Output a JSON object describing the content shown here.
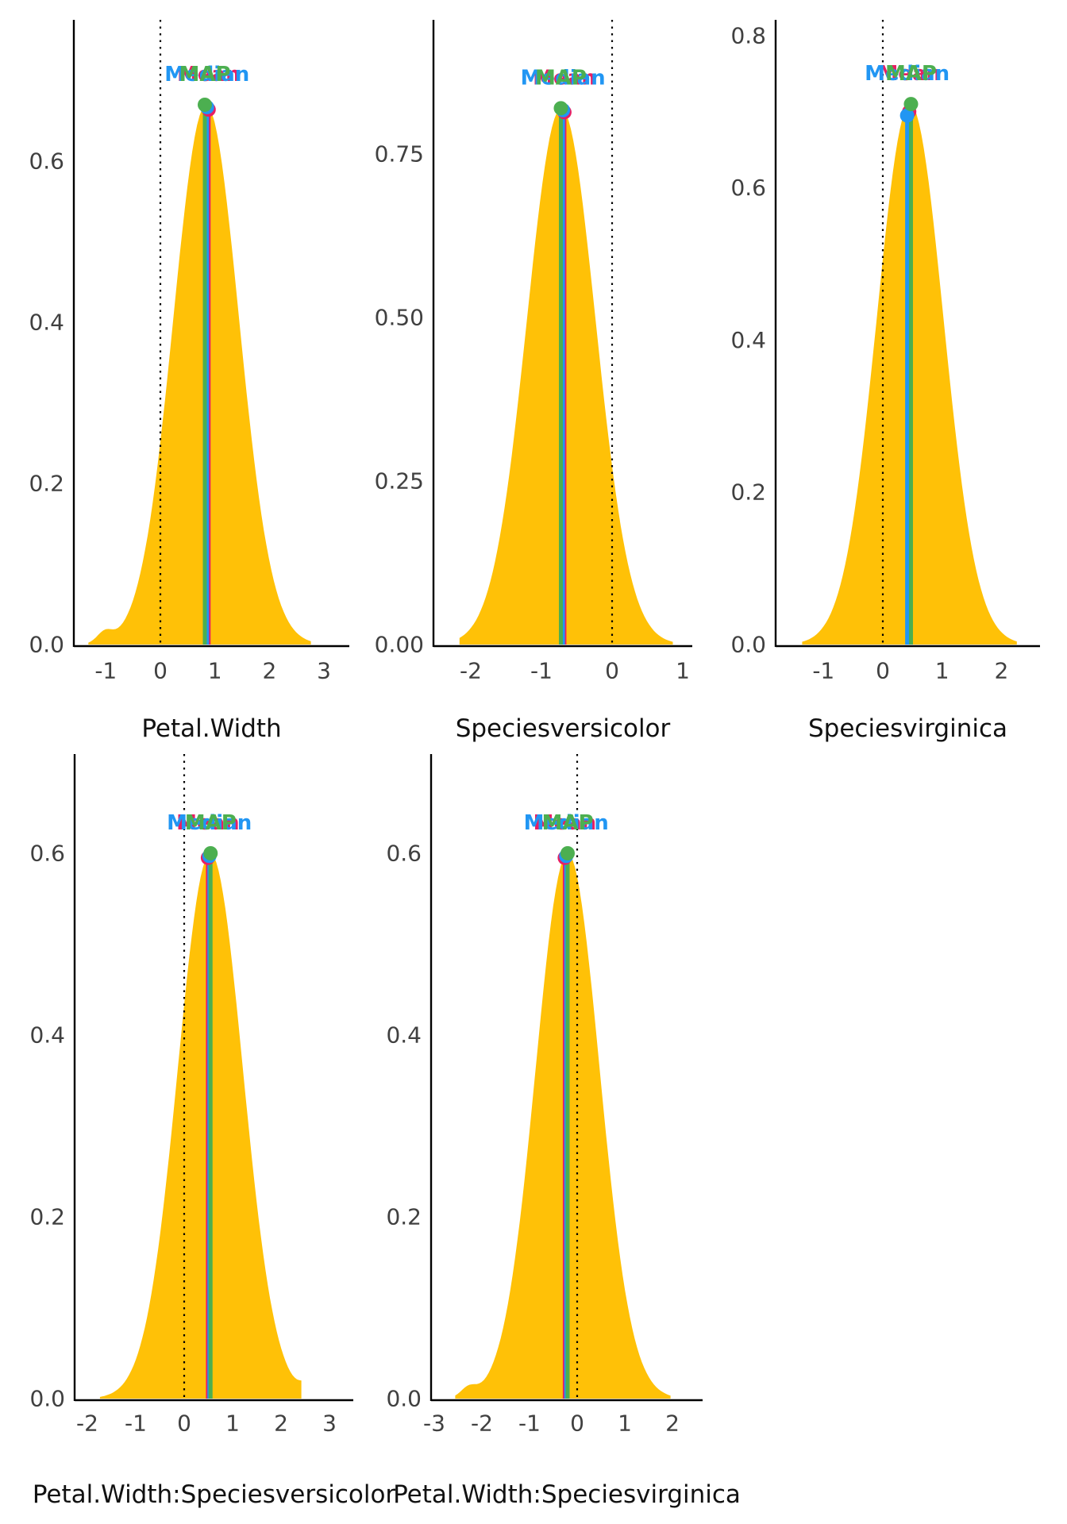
{
  "figure": {
    "description": "Posterior density point-estimate plots (Mean, Median, MAP) for regression parameters",
    "background": "#ffffff"
  },
  "colors": {
    "density_fill": "#FFC107",
    "mean": "#E91E63",
    "median": "#2196F3",
    "map": "#4CAF50",
    "axis": "#000000",
    "zero_line": "#000000",
    "tick_text": "#404040",
    "title_text": "#111111"
  },
  "estimate_legend": [
    "Mean",
    "Median",
    "MAP"
  ],
  "chart_data": [
    {
      "type": "area",
      "title": "Petal.Width",
      "x_ticks": [
        -1,
        0,
        1,
        2,
        3
      ],
      "y_ticks": [
        {
          "v": 0,
          "label": "0.0"
        },
        {
          "v": 0.2,
          "label": "0.2"
        },
        {
          "v": 0.4,
          "label": "0.4"
        },
        {
          "v": 0.6,
          "label": "0.6"
        }
      ],
      "zero_reference_line": 0,
      "density": {
        "mu": 0.84,
        "sd": 0.6,
        "peak": 0.67,
        "x_from": -1.32,
        "x_to": 2.76,
        "bumps": [
          {
            "x": -1.02,
            "sd": 0.14,
            "peak": 0.013
          }
        ]
      },
      "estimates": [
        {
          "name": "Mean",
          "color": "#E91E63",
          "x": 0.885,
          "height": 0.664
        },
        {
          "name": "Median",
          "color": "#2196F3",
          "x": 0.855,
          "height": 0.667
        },
        {
          "name": "MAP",
          "color": "#4CAF50",
          "x": 0.815,
          "height": 0.67
        }
      ]
    },
    {
      "type": "area",
      "title": "Speciesversicolor",
      "x_ticks": [
        -2,
        -1,
        0,
        1
      ],
      "y_ticks": [
        {
          "v": 0,
          "label": "0.00"
        },
        {
          "v": 0.25,
          "label": "0.25"
        },
        {
          "v": 0.5,
          "label": "0.50"
        },
        {
          "v": 0.75,
          "label": "0.75"
        }
      ],
      "zero_reference_line": 0,
      "density": {
        "mu": -0.72,
        "sd": 0.485,
        "peak": 0.82,
        "x_from": -2.16,
        "x_to": 0.86,
        "bumps": []
      },
      "estimates": [
        {
          "name": "Mean",
          "color": "#E91E63",
          "x": -0.675,
          "height": 0.814
        },
        {
          "name": "Median",
          "color": "#2196F3",
          "x": -0.695,
          "height": 0.817
        },
        {
          "name": "MAP",
          "color": "#4CAF50",
          "x": -0.725,
          "height": 0.82
        }
      ]
    },
    {
      "type": "area",
      "title": "Speciesvirginica",
      "x_ticks": [
        -1,
        0,
        1,
        2
      ],
      "y_ticks": [
        {
          "v": 0,
          "label": "0.0"
        },
        {
          "v": 0.2,
          "label": "0.2"
        },
        {
          "v": 0.4,
          "label": "0.4"
        },
        {
          "v": 0.6,
          "label": "0.6"
        },
        {
          "v": 0.8,
          "label": "0.8"
        }
      ],
      "zero_reference_line": 0,
      "density": {
        "mu": 0.46,
        "sd": 0.56,
        "peak": 0.71,
        "x_from": -1.36,
        "x_to": 2.26,
        "bumps": []
      },
      "estimates": [
        {
          "name": "Mean",
          "color": "#E91E63",
          "x": 0.445,
          "height": 0.7
        },
        {
          "name": "Median",
          "color": "#2196F3",
          "x": 0.41,
          "height": 0.695
        },
        {
          "name": "MAP",
          "color": "#4CAF50",
          "x": 0.475,
          "height": 0.71
        }
      ]
    },
    {
      "type": "area",
      "title": "Petal.Width:Speciesversicolor",
      "x_ticks": [
        -2,
        -1,
        0,
        1,
        2,
        3
      ],
      "y_ticks": [
        {
          "v": 0,
          "label": "0.0"
        },
        {
          "v": 0.2,
          "label": "0.2"
        },
        {
          "v": 0.4,
          "label": "0.4"
        },
        {
          "v": 0.6,
          "label": "0.6"
        }
      ],
      "zero_reference_line": 0,
      "density": {
        "mu": 0.54,
        "sd": 0.67,
        "peak": 0.6,
        "x_from": -1.74,
        "x_to": 2.42,
        "bumps": [
          {
            "x": 2.56,
            "sd": 0.16,
            "peak": 0.012
          }
        ]
      },
      "estimates": [
        {
          "name": "Mean",
          "color": "#E91E63",
          "x": 0.49,
          "height": 0.595
        },
        {
          "name": "Median",
          "color": "#2196F3",
          "x": 0.52,
          "height": 0.597
        },
        {
          "name": "MAP",
          "color": "#4CAF50",
          "x": 0.545,
          "height": 0.6
        }
      ]
    },
    {
      "type": "area",
      "title": "Petal.Width:Speciesvirginica",
      "x_ticks": [
        -3,
        -2,
        -1,
        0,
        1,
        2
      ],
      "y_ticks": [
        {
          "v": 0,
          "label": "0.0"
        },
        {
          "v": 0.2,
          "label": "0.2"
        },
        {
          "v": 0.4,
          "label": "0.4"
        },
        {
          "v": 0.6,
          "label": "0.6"
        }
      ],
      "zero_reference_line": 0,
      "density": {
        "mu": -0.2,
        "sd": 0.67,
        "peak": 0.6,
        "x_from": -2.56,
        "x_to": 1.96,
        "bumps": [
          {
            "x": -2.28,
            "sd": 0.16,
            "peak": 0.01
          }
        ]
      },
      "estimates": [
        {
          "name": "Mean",
          "color": "#E91E63",
          "x": -0.26,
          "height": 0.595
        },
        {
          "name": "Median",
          "color": "#2196F3",
          "x": -0.23,
          "height": 0.597
        },
        {
          "name": "MAP",
          "color": "#4CAF50",
          "x": -0.2,
          "height": 0.6
        }
      ]
    }
  ]
}
